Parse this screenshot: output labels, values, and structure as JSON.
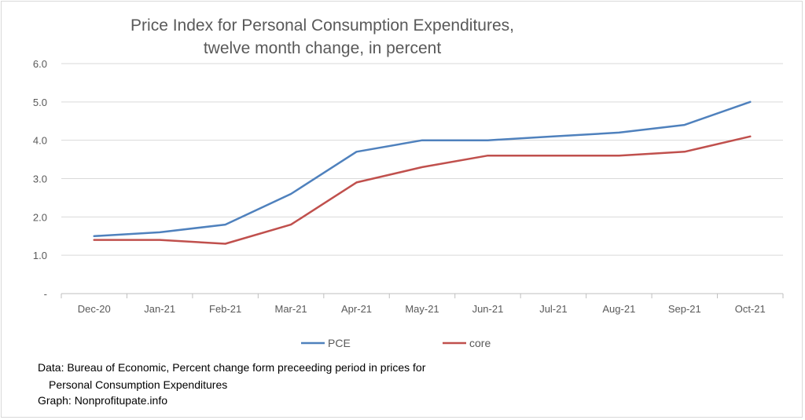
{
  "chart_data": {
    "type": "line",
    "title": [
      "Price Index for Personal Consumption Expenditures,",
      "twelve month change, in percent"
    ],
    "categories": [
      "Dec-20",
      "Jan-21",
      "Feb-21",
      "Mar-21",
      "Apr-21",
      "May-21",
      "Jun-21",
      "Jul-21",
      "Aug-21",
      "Sep-21",
      "Oct-21"
    ],
    "series": [
      {
        "name": "PCE",
        "color": "#4f81bd",
        "values": [
          1.5,
          1.6,
          1.8,
          2.6,
          3.7,
          4.0,
          4.0,
          4.1,
          4.2,
          4.4,
          5.0
        ]
      },
      {
        "name": "core",
        "color": "#c0504d",
        "values": [
          1.4,
          1.4,
          1.3,
          1.8,
          2.9,
          3.3,
          3.6,
          3.6,
          3.6,
          3.7,
          4.1
        ]
      }
    ],
    "ylim": [
      0,
      6
    ],
    "yticks": [
      {
        "value": 0,
        "label": "-"
      },
      {
        "value": 1,
        "label": "1.0"
      },
      {
        "value": 2,
        "label": "2.0"
      },
      {
        "value": 3,
        "label": "3.0"
      },
      {
        "value": 4,
        "label": "4.0"
      },
      {
        "value": 5,
        "label": "5.0"
      },
      {
        "value": 6,
        "label": "6.0"
      }
    ],
    "grid": true,
    "legend": "bottom"
  },
  "footnote": {
    "line1": "Data: Bureau of Economic, Percent change form preceeding  period in prices for",
    "line2": "Personal Consumption Expenditures",
    "line3": "Graph:  Nonprofitupate.info"
  }
}
